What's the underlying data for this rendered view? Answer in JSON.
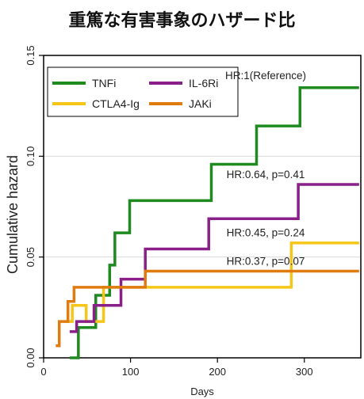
{
  "title": "重篤な有害事象のハザード比",
  "chart_data": {
    "type": "line",
    "step": true,
    "xlabel": "Days",
    "ylabel": "Cumulative hazard",
    "xlim": [
      0,
      365
    ],
    "ylim": [
      0,
      0.15
    ],
    "xticks": [
      "0",
      "100",
      "200",
      "300"
    ],
    "xtick_values": [
      0,
      100,
      200,
      300
    ],
    "yticks": [
      "0.00",
      "0.05",
      "0.10",
      "0.15"
    ],
    "ytick_values": [
      0,
      0.05,
      0.1,
      0.15
    ],
    "grid": "horizontal",
    "legend_position": "top-left",
    "series": [
      {
        "name": "TNFi",
        "color": "#1f8a1f",
        "x": [
          30,
          40,
          60,
          76,
          82,
          99,
          193,
          245,
          295,
          363
        ],
        "y": [
          0,
          0.015,
          0.031,
          0.046,
          0.062,
          0.078,
          0.096,
          0.115,
          0.134,
          0.134
        ]
      },
      {
        "name": "CTLA4-Ig",
        "color": "#f5c518",
        "x": [
          25,
          33,
          49,
          69,
          116,
          285,
          363
        ],
        "y": [
          0.018,
          0.026,
          0.018,
          0.035,
          0.035,
          0.057,
          0.057
        ]
      },
      {
        "name": "IL-6Ri",
        "color": "#8a1f8a",
        "x": [
          30,
          38,
          58,
          89,
          117,
          190,
          293,
          363
        ],
        "y": [
          0.013,
          0.018,
          0.026,
          0.039,
          0.054,
          0.069,
          0.086,
          0.086
        ]
      },
      {
        "name": "JAKi",
        "color": "#e07b10",
        "x": [
          14,
          18,
          28,
          35,
          117,
          363
        ],
        "y": [
          0.006,
          0.018,
          0.028,
          0.035,
          0.043,
          0.043
        ]
      }
    ],
    "annotations": [
      {
        "text": "HR:1(Reference)",
        "x": 297,
        "y": 0.137
      },
      {
        "text": "HR:0.64, p=0.41",
        "x": 297,
        "y": 0.088
      },
      {
        "text": "HR:0.45, p=0.24",
        "x": 297,
        "y": 0.059
      },
      {
        "text": "HR:0.37, p=0.07",
        "x": 297,
        "y": 0.045
      }
    ]
  }
}
